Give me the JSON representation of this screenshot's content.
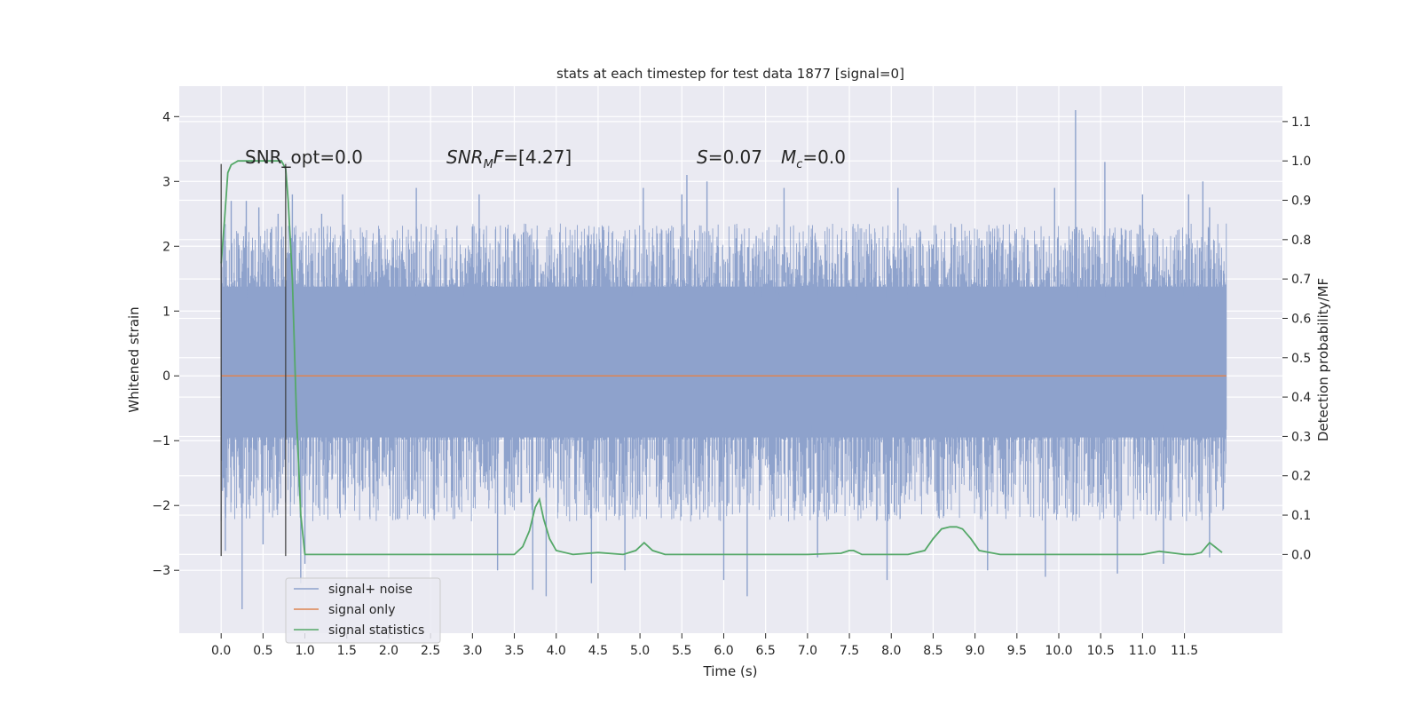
{
  "chart_data": {
    "type": "line",
    "title": "stats at each timestep for test data 1877 [signal=0]",
    "xlabel": "Time (s)",
    "ylabel_left": "Whitened strain",
    "ylabel_right": "Detection probability/MF",
    "xlim": [
      -0.5,
      12.67
    ],
    "ylim_left": [
      -3.97,
      4.47
    ],
    "ylim_right": [
      -0.2,
      1.19
    ],
    "x_ticks": [
      "0.0",
      "0.5",
      "1.0",
      "1.5",
      "2.0",
      "2.5",
      "3.0",
      "3.5",
      "4.0",
      "4.5",
      "5.0",
      "5.5",
      "6.0",
      "6.5",
      "7.0",
      "7.5",
      "8.0",
      "8.5",
      "9.0",
      "9.5",
      "10.0",
      "10.5",
      "11.0",
      "11.5"
    ],
    "x_tick_values": [
      0,
      0.5,
      1,
      1.5,
      2,
      2.5,
      3,
      3.5,
      4,
      4.5,
      5,
      5.5,
      6,
      6.5,
      7,
      7.5,
      8,
      8.5,
      9,
      9.5,
      10,
      10.5,
      11,
      11.5
    ],
    "left_ticks": [
      "4",
      "3",
      "2",
      "1",
      "0",
      "−1",
      "−2",
      "−3"
    ],
    "left_tick_values": [
      4,
      3,
      2,
      1,
      0,
      -1,
      -2,
      -3
    ],
    "right_ticks": [
      "1.1",
      "1.0",
      "0.9",
      "0.8",
      "0.7",
      "0.6",
      "0.5",
      "0.4",
      "0.3",
      "0.2",
      "0.1",
      "0.0"
    ],
    "right_tick_values": [
      1.1,
      1.0,
      0.9,
      0.8,
      0.7,
      0.6,
      0.5,
      0.4,
      0.3,
      0.2,
      0.1,
      0.0
    ],
    "grid": true,
    "legend_position": "lower-left",
    "annotations": {
      "snr_opt": "SNR_opt=0.0",
      "snr_mf_prefix": "SNR",
      "snr_mf_sub": "M",
      "snr_mf_suffix": "F",
      "snr_mf_value": "=[4.27]",
      "s_name": "S",
      "s_value": "=0.07",
      "mc_name": "M",
      "mc_sub": "c",
      "mc_value": "=0.0"
    },
    "vertical_markers": [
      0.0,
      0.77
    ],
    "series": [
      {
        "name": "signal+ noise",
        "color": "#8ea2cc",
        "axis": "left",
        "x_range": [
          0,
          12.0
        ],
        "envelope_core": [
          -1.0,
          1.45
        ],
        "peaks_upper": [
          [
            0.05,
            2.0
          ],
          [
            0.12,
            2.7
          ],
          [
            0.2,
            2.2
          ],
          [
            0.3,
            2.7
          ],
          [
            0.45,
            2.6
          ],
          [
            0.68,
            2.5
          ],
          [
            0.85,
            2.8
          ],
          [
            1.2,
            2.5
          ],
          [
            1.45,
            2.8
          ],
          [
            2.33,
            2.3
          ],
          [
            2.33,
            2.9
          ],
          [
            3.08,
            2.8
          ],
          [
            4.56,
            2.3
          ],
          [
            5.04,
            2.9
          ],
          [
            5.5,
            2.8
          ],
          [
            5.56,
            3.1
          ],
          [
            5.8,
            3.0
          ],
          [
            6.72,
            2.9
          ],
          [
            8.08,
            2.9
          ],
          [
            9.95,
            2.9
          ],
          [
            10.2,
            4.1
          ],
          [
            10.55,
            3.3
          ],
          [
            11.0,
            2.8
          ],
          [
            11.55,
            2.8
          ],
          [
            11.72,
            3.0
          ],
          [
            11.8,
            2.6
          ]
        ],
        "peaks_lower": [
          [
            0.05,
            -2.7
          ],
          [
            0.25,
            -3.6
          ],
          [
            0.5,
            -2.6
          ],
          [
            0.95,
            -3.2
          ],
          [
            1.0,
            -2.9
          ],
          [
            3.3,
            -3.0
          ],
          [
            3.72,
            -3.3
          ],
          [
            3.88,
            -3.4
          ],
          [
            4.42,
            -3.2
          ],
          [
            4.82,
            -3.0
          ],
          [
            6.0,
            -3.15
          ],
          [
            6.28,
            -3.4
          ],
          [
            7.12,
            -2.8
          ],
          [
            7.95,
            -3.15
          ],
          [
            9.15,
            -3.0
          ],
          [
            9.84,
            -3.1
          ],
          [
            10.7,
            -3.05
          ],
          [
            11.25,
            -2.9
          ],
          [
            11.8,
            -2.8
          ]
        ]
      },
      {
        "name": "signal only",
        "color": "#dd8452",
        "axis": "left",
        "x": [
          0.0,
          12.0
        ],
        "y": [
          0.0,
          0.0
        ]
      },
      {
        "name": "signal statistics",
        "color": "#55a868",
        "axis": "right",
        "x": [
          0.0,
          0.04,
          0.08,
          0.12,
          0.2,
          0.3,
          0.45,
          0.6,
          0.68,
          0.72,
          0.77,
          0.8,
          0.85,
          0.9,
          0.95,
          1.0,
          1.1,
          1.5,
          2.0,
          3.0,
          3.5,
          3.6,
          3.68,
          3.75,
          3.8,
          3.85,
          3.92,
          4.0,
          4.2,
          4.5,
          4.8,
          4.95,
          5.05,
          5.15,
          5.3,
          6.0,
          7.0,
          7.4,
          7.5,
          7.55,
          7.65,
          7.8,
          8.2,
          8.4,
          8.5,
          8.6,
          8.7,
          8.78,
          8.85,
          8.95,
          9.05,
          9.3,
          10.0,
          10.5,
          11.0,
          11.2,
          11.5,
          11.6,
          11.7,
          11.8,
          11.86,
          11.95
        ],
        "y": [
          0.74,
          0.85,
          0.97,
          0.99,
          1.0,
          1.0,
          1.0,
          1.0,
          1.0,
          1.0,
          0.98,
          0.9,
          0.7,
          0.35,
          0.1,
          0.0,
          0.0,
          0.0,
          0.0,
          0.0,
          0.0,
          0.02,
          0.06,
          0.12,
          0.14,
          0.09,
          0.04,
          0.01,
          0.0,
          0.005,
          0.0,
          0.01,
          0.03,
          0.01,
          0.0,
          0.0,
          0.0,
          0.003,
          0.01,
          0.01,
          0.0,
          0.0,
          0.0,
          0.01,
          0.04,
          0.065,
          0.07,
          0.07,
          0.065,
          0.04,
          0.01,
          0.0,
          0.0,
          0.0,
          0.0,
          0.008,
          0.0,
          0.0,
          0.005,
          0.03,
          0.02,
          0.005
        ]
      }
    ]
  }
}
